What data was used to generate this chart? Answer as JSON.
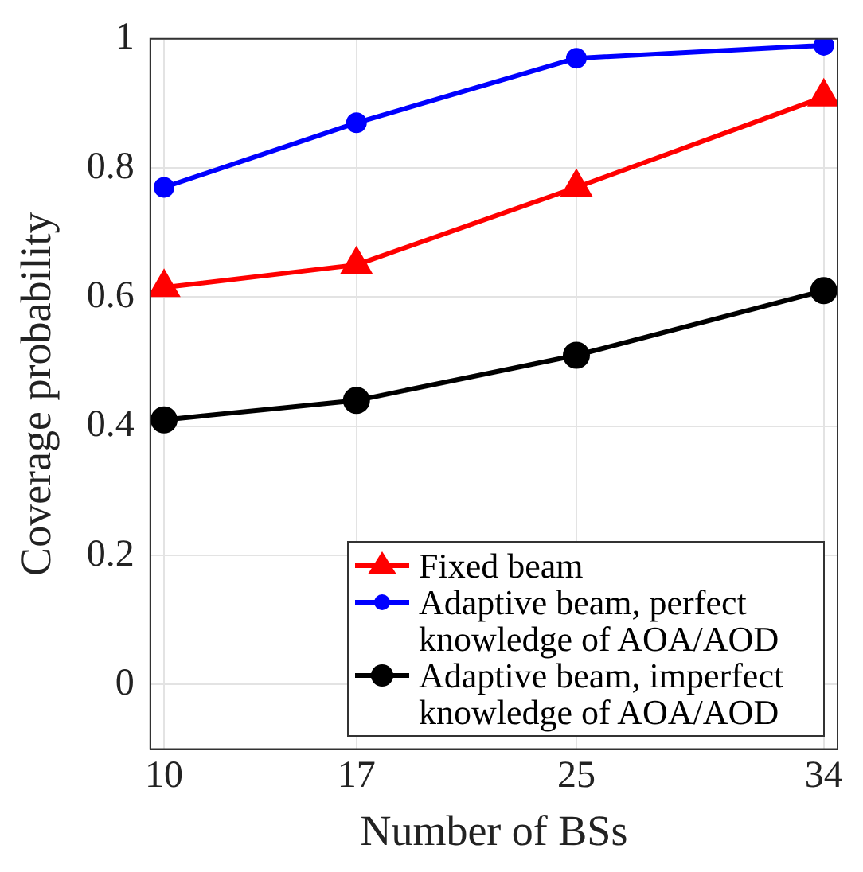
{
  "chart_data": {
    "type": "line",
    "xlabel": "Number of BSs",
    "ylabel": "Coverage probability",
    "x": [
      10,
      17,
      25,
      34
    ],
    "series": [
      {
        "name": "Fixed beam",
        "color": "#ff0000",
        "marker": "triangle",
        "values": [
          0.615,
          0.65,
          0.77,
          0.91
        ]
      },
      {
        "name": "Adaptive beam, perfect knowledge of AOA/AOD",
        "color": "#0000ff",
        "marker": "circle",
        "values": [
          0.77,
          0.87,
          0.97,
          0.99
        ]
      },
      {
        "name": "Adaptive beam, imperfect knowledge of AOA/AOD",
        "color": "#000000",
        "marker": "circle",
        "values": [
          0.41,
          0.44,
          0.51,
          0.61
        ]
      }
    ],
    "xlim": [
      9.5,
      34.5
    ],
    "xticks": [
      10,
      17,
      25,
      34
    ],
    "ylim": [
      -0.1,
      1
    ],
    "yticks": [
      0,
      0.2,
      0.4,
      0.6,
      0.8,
      1
    ],
    "grid": true,
    "legend": "bottom right",
    "line_style": "solid"
  }
}
